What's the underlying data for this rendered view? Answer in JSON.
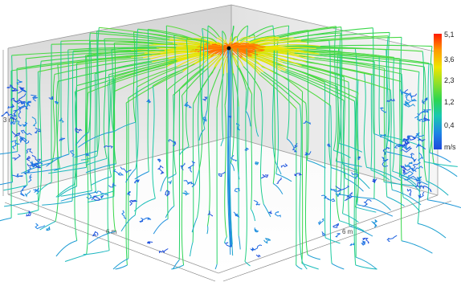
{
  "room": {
    "height_label": "3 m",
    "width_label_left": "6 m",
    "width_label_right": "6 m"
  },
  "legend": {
    "unit": "m/s",
    "ticks": [
      "5,1",
      "3,6",
      "2,3",
      "1,2",
      "0,4"
    ],
    "colors": [
      "#ff1a00",
      "#ff9900",
      "#f0e600",
      "#8ee02a",
      "#2dd64f",
      "#19c9b0",
      "#1e84e6",
      "#1f48dc"
    ]
  }
}
